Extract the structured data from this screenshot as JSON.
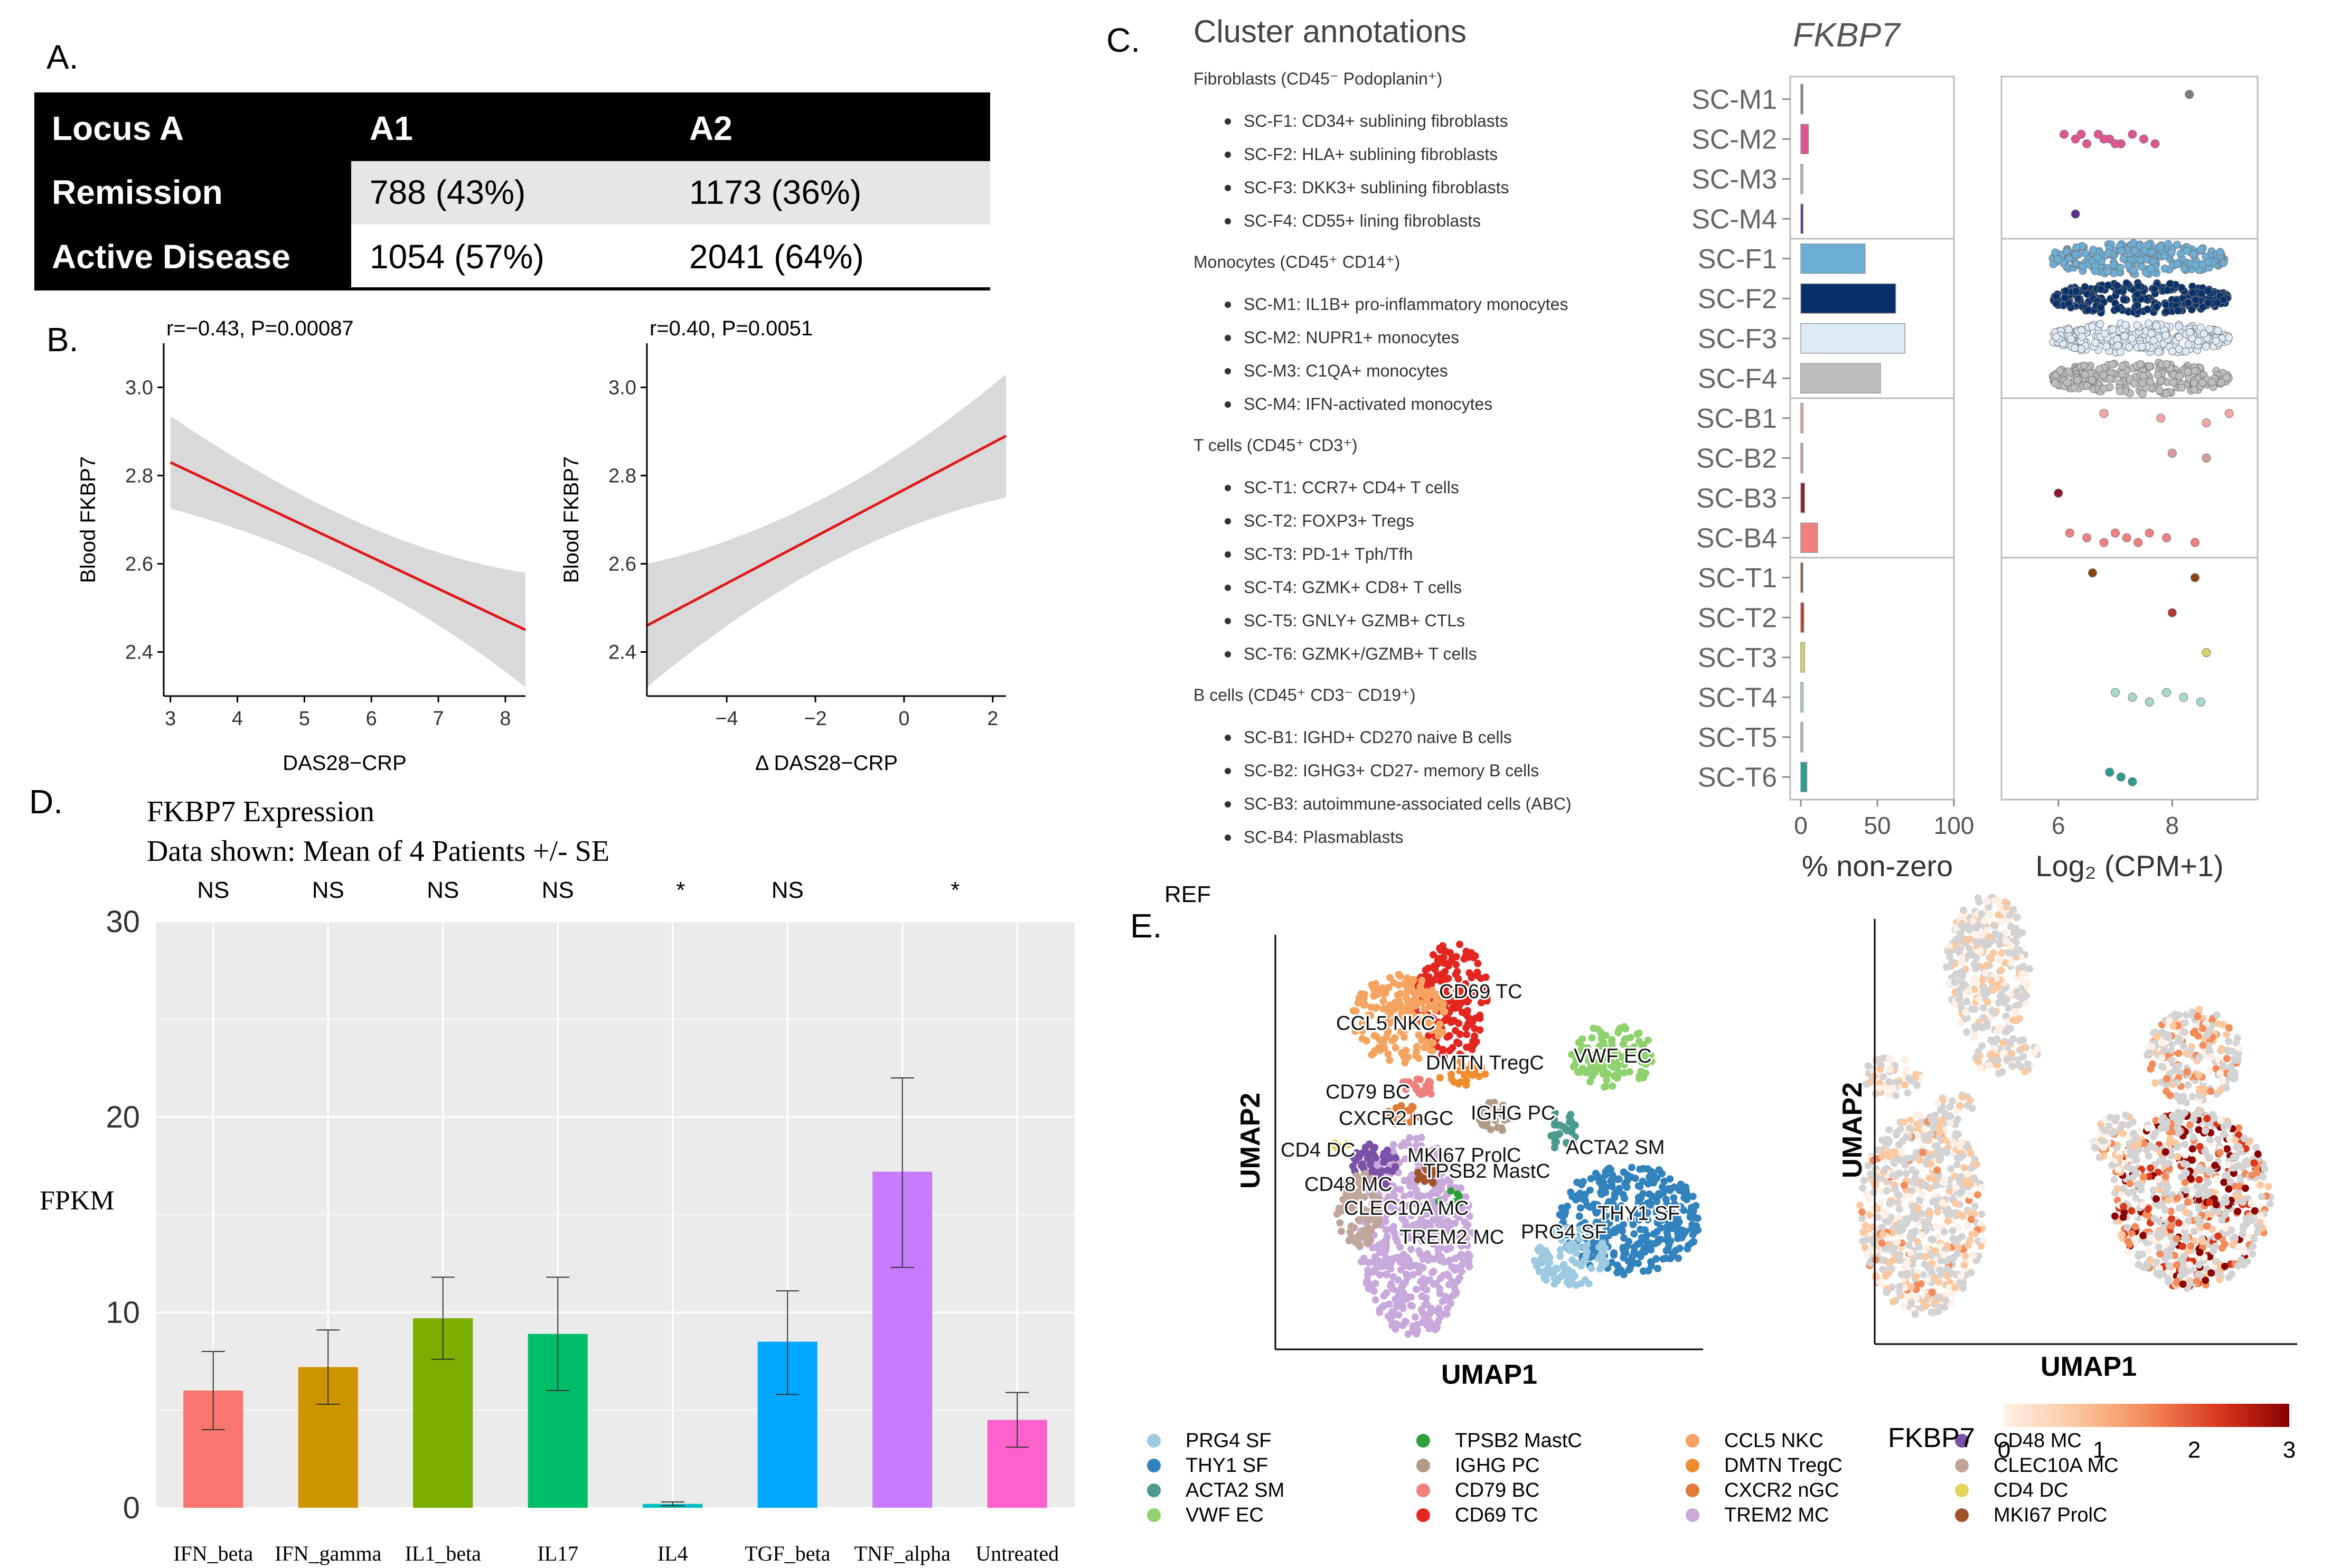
{
  "panel_labels": {
    "a": "A.",
    "b": "B.",
    "c": "C.",
    "d": "D.",
    "e": "E."
  },
  "colors": {
    "table_header_bg": "#000000",
    "table_row_bg": "#e6e6e6",
    "regression_line": "#e0181b",
    "ci_band": "#d9d9d9",
    "plot_bg": "#ebebeb",
    "umap_grey": "#d3d3d3",
    "fkbp7_low": "#fdf0e6",
    "fkbp7_high": "#8b0000"
  },
  "panel_a": {
    "header": [
      "Locus A",
      "A1",
      "A2"
    ],
    "rows": [
      {
        "label": "Remission",
        "a1": "788 (43%)",
        "a2": "1173 (36%)"
      },
      {
        "label": "Active Disease",
        "a1": "1054 (57%)",
        "a2": "2041 (64%)"
      }
    ]
  },
  "panel_b": {
    "plots": [
      {
        "stat": "r=−0.43, P=0.00087",
        "xlabel": "DAS28−CRP",
        "ylabel": "Blood FKBP7",
        "xticks": [
          "3",
          "4",
          "5",
          "6",
          "7",
          "8"
        ],
        "yticks": [
          "2.4",
          "2.6",
          "2.8",
          "3.0"
        ]
      },
      {
        "stat": "r=0.40, P=0.0051",
        "xlabel": "Δ DAS28−CRP",
        "ylabel": "Blood FKBP7",
        "xticks": [
          "−4",
          "−2",
          "0",
          "2"
        ],
        "yticks": [
          "2.4",
          "2.6",
          "2.8",
          "3.0"
        ]
      }
    ]
  },
  "panel_c": {
    "title": "Cluster annotations",
    "gene": "FKBP7",
    "groups": [
      {
        "header": "Fibroblasts (CD45⁻ Podoplanin⁺)",
        "items": [
          "SC-F1: CD34+ sublining fibroblasts",
          "SC-F2: HLA+ sublining fibroblasts",
          "SC-F3: DKK3+ sublining fibroblasts",
          "SC-F4: CD55+ lining fibroblasts"
        ]
      },
      {
        "header": "Monocytes (CD45⁺ CD14⁺)",
        "items": [
          "SC-M1: IL1B+ pro-inflammatory monocytes",
          "SC-M2: NUPR1+ monocytes",
          "SC-M3: C1QA+ monocytes",
          "SC-M4: IFN-activated monocytes"
        ]
      },
      {
        "header": "T cells (CD45⁺ CD3⁺)",
        "items": [
          "SC-T1: CCR7+ CD4+ T cells",
          "SC-T2: FOXP3+ Tregs",
          "SC-T3: PD-1+ Tph/Tfh",
          "SC-T4: GZMK+ CD8+ T cells",
          "SC-T5: GNLY+ GZMB+ CTLs",
          "SC-T6: GZMK+/GZMB+ T cells"
        ]
      },
      {
        "header": "B cells (CD45⁺ CD3⁻ CD19⁺)",
        "items": [
          "SC-B1: IGHD+ CD270 naive B cells",
          "SC-B2: IGHG3+ CD27- memory B cells",
          "SC-B3: autoimmune-associated cells (ABC)",
          "SC-B4: Plasmablasts"
        ]
      }
    ],
    "cluster_labels": [
      "SC-M1",
      "SC-M2",
      "SC-M3",
      "SC-M4",
      "SC-F1",
      "SC-F2",
      "SC-F3",
      "SC-F4",
      "SC-B1",
      "SC-B2",
      "SC-B3",
      "SC-B4",
      "SC-T1",
      "SC-T2",
      "SC-T3",
      "SC-T4",
      "SC-T5",
      "SC-T6"
    ],
    "bar_xlabel": "% non-zero",
    "bar_xticks": [
      "0",
      "50",
      "100"
    ],
    "dot_xlabel": "Log₂ (CPM+1)",
    "dot_xticks": [
      "6",
      "8"
    ],
    "ref_label": "REF"
  },
  "panel_d": {
    "title": "FKBP7 Expression",
    "subtitle": "Data shown:  Mean of 4 Patients +/- SE",
    "ylabel": "FPKM",
    "yticks": [
      "0",
      "10",
      "20",
      "30"
    ],
    "significance": [
      "NS",
      "NS",
      "NS",
      "NS",
      "*",
      "NS",
      "*"
    ]
  },
  "panel_e": {
    "xlabel": "UMAP1",
    "ylabel": "UMAP2",
    "cluster_text": [
      "CD69 TC",
      "CCL5 NKC",
      "VWF EC",
      "DMTN TregC",
      "CD79 BC",
      "CXCR2 nGC",
      "IGHG PC",
      "CD4 DC",
      "MKI67 ProlC",
      "ACTA2 SM",
      "CD48 MC",
      "TPSB2 MastC",
      "CLEC10A MC",
      "THY1 SF",
      "TREM2 MC",
      "PRG4 SF"
    ],
    "legend": [
      {
        "label": "PRG4 SF",
        "color": "#9ecae1"
      },
      {
        "label": "THY1 SF",
        "color": "#3182bd"
      },
      {
        "label": "ACTA2 SM",
        "color": "#4a9a8e"
      },
      {
        "label": "VWF EC",
        "color": "#8fd16e"
      },
      {
        "label": "TPSB2 MastC",
        "color": "#2e9e3a"
      },
      {
        "label": "IGHG PC",
        "color": "#b09b87"
      },
      {
        "label": "CD79 BC",
        "color": "#f07f7f"
      },
      {
        "label": "CD69 TC",
        "color": "#e3261f"
      },
      {
        "label": "CCL5 NKC",
        "color": "#f4a460"
      },
      {
        "label": "DMTN TregC",
        "color": "#f08c2e"
      },
      {
        "label": "CXCR2 nGC",
        "color": "#e07b3c"
      },
      {
        "label": "TREM2 MC",
        "color": "#c9a9db"
      },
      {
        "label": "CD48 MC",
        "color": "#7b52a8"
      },
      {
        "label": "CLEC10A MC",
        "color": "#c0a59a"
      },
      {
        "label": "CD4 DC",
        "color": "#e6d35c"
      },
      {
        "label": "MKI67 ProlC",
        "color": "#a0522d"
      }
    ],
    "colorbar_label": "FKBP7",
    "colorbar_ticks": [
      "0",
      "1",
      "2",
      "3"
    ]
  },
  "chart_data": [
    {
      "type": "line",
      "panel": "B-left",
      "xlabel": "DAS28−CRP",
      "ylabel": "Blood FKBP7",
      "x": [
        3,
        8.3
      ],
      "y": [
        2.83,
        2.45
      ],
      "ci_lower": [
        2.73,
        2.32
      ],
      "ci_upper": [
        2.94,
        2.58
      ],
      "xlim": [
        2.9,
        8.3
      ],
      "ylim": [
        2.3,
        3.1
      ],
      "annotation": "r=−0.43, P=0.00087"
    },
    {
      "type": "line",
      "panel": "B-right",
      "xlabel": "Δ DAS28−CRP",
      "ylabel": "Blood FKBP7",
      "x": [
        -5.8,
        2.3
      ],
      "y": [
        2.46,
        2.89
      ],
      "ci_lower": [
        2.32,
        2.77
      ],
      "ci_upper": [
        2.6,
        3.05
      ],
      "xlim": [
        -5.8,
        2.3
      ],
      "ylim": [
        2.3,
        3.1
      ],
      "annotation": "r=0.40, P=0.0051"
    },
    {
      "type": "bar",
      "panel": "C-bars",
      "xlabel": "% non-zero",
      "categories": [
        "SC-M1",
        "SC-M2",
        "SC-M3",
        "SC-M4",
        "SC-F1",
        "SC-F2",
        "SC-F3",
        "SC-F4",
        "SC-B1",
        "SC-B2",
        "SC-B3",
        "SC-B4",
        "SC-T1",
        "SC-T2",
        "SC-T3",
        "SC-T4",
        "SC-T5",
        "SC-T6"
      ],
      "values": [
        1,
        5,
        0.5,
        1.5,
        42,
        62,
        68,
        52,
        1.5,
        1,
        2.5,
        11,
        1,
        2,
        2.5,
        1.5,
        0.3,
        4
      ],
      "colors": [
        "#7a7a7a",
        "#e0558f",
        "#bbbbbb",
        "#5c2d91",
        "#6baed6",
        "#08306b",
        "#deebf7",
        "#bdbdbd",
        "#f4a6a6",
        "#d99a9a",
        "#8b1a2b",
        "#f08080",
        "#8b4513",
        "#b03a2e",
        "#d4d46a",
        "#a7d8cf",
        "#bbbbbb",
        "#2a9d8f"
      ],
      "xlim": [
        0,
        100
      ]
    },
    {
      "type": "scatter",
      "panel": "C-dots",
      "xlabel": "Log₂ (CPM+1)",
      "xlim": [
        5,
        9.5
      ],
      "series": [
        {
          "name": "SC-M1",
          "values": [
            8.3
          ]
        },
        {
          "name": "SC-M2",
          "values": [
            6.1,
            6.3,
            6.5,
            6.7,
            6.9,
            7.1,
            7.3,
            7.5,
            7.7,
            6.4,
            6.8,
            7.0
          ]
        },
        {
          "name": "SC-M4",
          "values": [
            6.3
          ]
        },
        {
          "name": "SC-B1",
          "values": [
            6.8,
            7.8,
            8.6,
            9.0
          ]
        },
        {
          "name": "SC-B2",
          "values": [
            8.0,
            8.6
          ]
        },
        {
          "name": "SC-B3",
          "values": [
            6.0
          ]
        },
        {
          "name": "SC-B4",
          "values": [
            6.2,
            6.5,
            6.8,
            7.0,
            7.2,
            7.4,
            7.6,
            7.9,
            8.4
          ]
        },
        {
          "name": "SC-T1",
          "values": [
            6.6,
            8.4
          ]
        },
        {
          "name": "SC-T2",
          "values": [
            8.0
          ]
        },
        {
          "name": "SC-T3",
          "values": [
            8.6
          ]
        },
        {
          "name": "SC-T4",
          "values": [
            7.0,
            7.3,
            7.6,
            7.9,
            8.2,
            8.5
          ]
        },
        {
          "name": "SC-T6",
          "values": [
            6.9,
            7.1,
            7.3
          ]
        }
      ]
    },
    {
      "type": "bar",
      "panel": "D",
      "title": "FKBP7 Expression",
      "ylabel": "FPKM",
      "categories": [
        "IFN_beta",
        "IFN_gamma",
        "IL1_beta",
        "IL17",
        "IL4",
        "TGF_beta",
        "TNF_alpha",
        "Untreated"
      ],
      "values": [
        6.0,
        7.2,
        9.7,
        8.9,
        0.2,
        8.5,
        17.2,
        4.5
      ],
      "error_low": [
        4.0,
        5.3,
        7.6,
        6.0,
        0.1,
        5.8,
        12.3,
        3.1
      ],
      "error_high": [
        8.0,
        9.1,
        11.8,
        11.8,
        0.3,
        11.1,
        22.0,
        5.9
      ],
      "colors": [
        "#f8766d",
        "#cd9600",
        "#7cae00",
        "#00be67",
        "#00bfc4",
        "#00a9ff",
        "#c77cff",
        "#ff61cc"
      ],
      "ylim": [
        0,
        30
      ]
    }
  ]
}
